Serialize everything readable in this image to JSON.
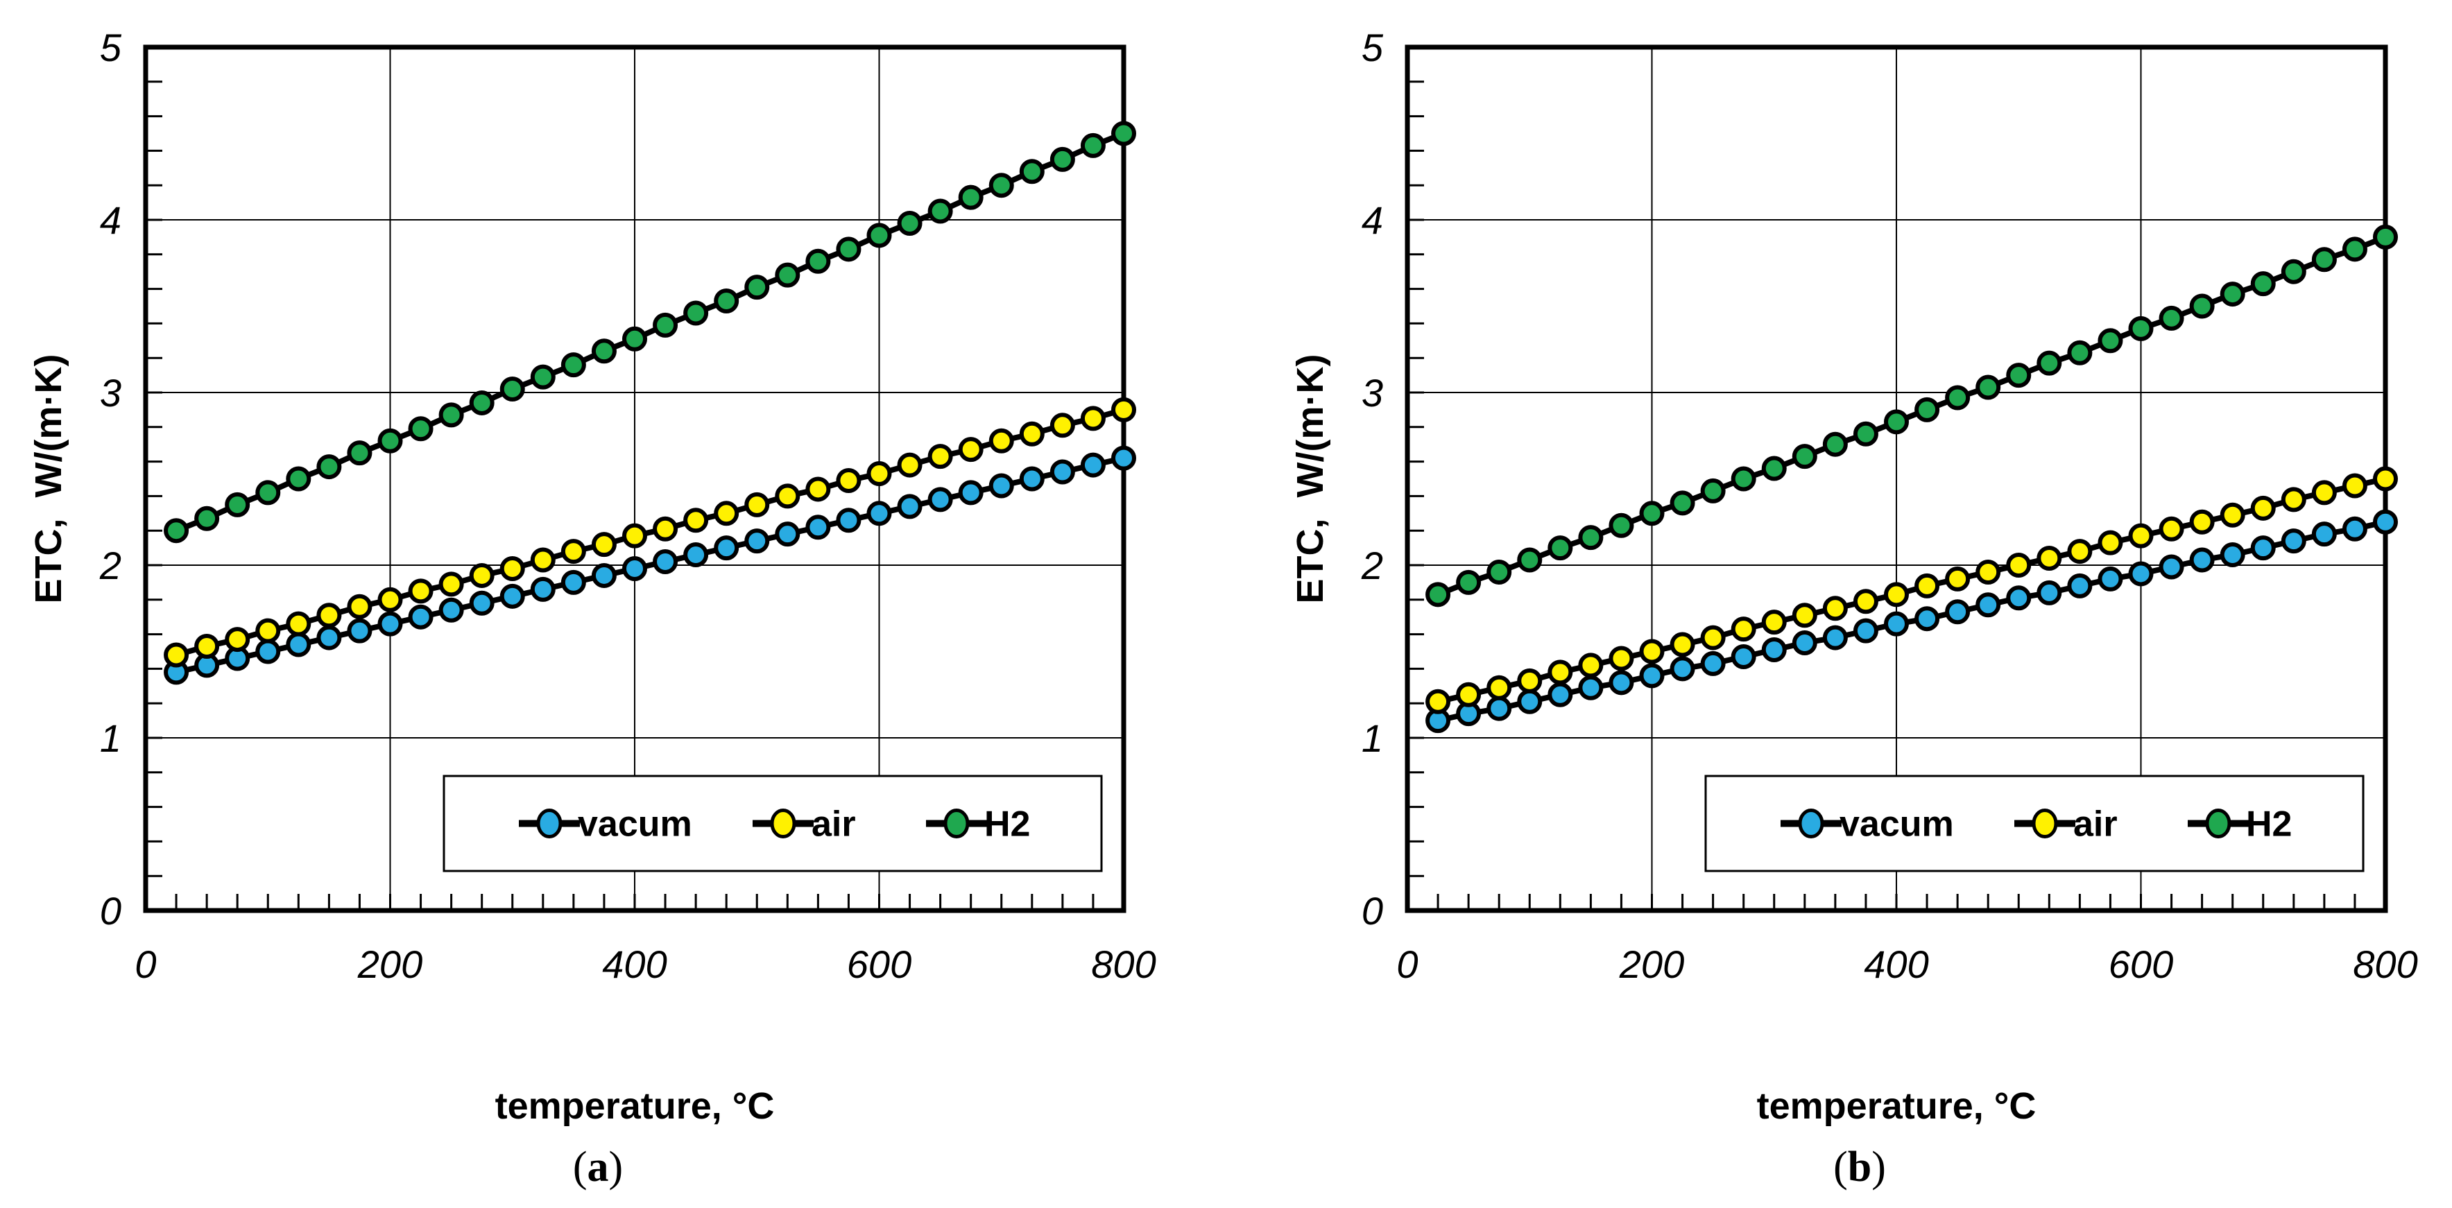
{
  "figure": {
    "background": "#FFFFFF",
    "captions": [
      {
        "label_open": "(",
        "label_letter": "a",
        "label_close": ")"
      },
      {
        "label_open": "(",
        "label_letter": "b",
        "label_close": ")"
      }
    ]
  },
  "chart_data": [
    {
      "type": "line",
      "panel": "a",
      "xlabel": "temperature, °C",
      "ylabel": "ETC,  W/(m·K)",
      "xlim": [
        0,
        800
      ],
      "ylim": [
        0,
        5
      ],
      "xticks": [
        0,
        200,
        400,
        600,
        800
      ],
      "yticks": [
        0,
        1,
        2,
        3,
        4,
        5
      ],
      "x_minor_step": 25,
      "y_minor_step": 0.2,
      "grid": true,
      "legend_position": "bottom-inside",
      "x": [
        25,
        50,
        75,
        100,
        125,
        150,
        175,
        200,
        225,
        250,
        275,
        300,
        325,
        350,
        375,
        400,
        425,
        450,
        475,
        500,
        525,
        550,
        575,
        600,
        625,
        650,
        675,
        700,
        725,
        750,
        775,
        800
      ],
      "series": [
        {
          "name": "vacum",
          "color": "#29ABE2",
          "values": [
            1.38,
            1.42,
            1.46,
            1.5,
            1.54,
            1.58,
            1.62,
            1.66,
            1.7,
            1.74,
            1.78,
            1.82,
            1.86,
            1.9,
            1.94,
            1.98,
            2.02,
            2.06,
            2.1,
            2.14,
            2.18,
            2.22,
            2.26,
            2.3,
            2.34,
            2.38,
            2.42,
            2.46,
            2.5,
            2.54,
            2.58,
            2.62
          ]
        },
        {
          "name": "air",
          "color": "#FFF100",
          "values": [
            1.48,
            1.53,
            1.57,
            1.62,
            1.66,
            1.71,
            1.76,
            1.8,
            1.85,
            1.89,
            1.94,
            1.98,
            2.03,
            2.08,
            2.12,
            2.17,
            2.21,
            2.26,
            2.3,
            2.35,
            2.4,
            2.44,
            2.49,
            2.53,
            2.58,
            2.63,
            2.67,
            2.72,
            2.76,
            2.81,
            2.85,
            2.9
          ]
        },
        {
          "name": "H2",
          "color": "#1FA84F",
          "values": [
            2.2,
            2.27,
            2.35,
            2.42,
            2.5,
            2.57,
            2.65,
            2.72,
            2.79,
            2.87,
            2.94,
            3.02,
            3.09,
            3.16,
            3.24,
            3.31,
            3.39,
            3.46,
            3.53,
            3.61,
            3.68,
            3.76,
            3.83,
            3.91,
            3.98,
            4.05,
            4.13,
            4.2,
            4.28,
            4.35,
            4.43,
            4.5
          ]
        }
      ],
      "legend": [
        "vacum",
        "air",
        "H2"
      ]
    },
    {
      "type": "line",
      "panel": "b",
      "xlabel": "temperature, °C",
      "ylabel": "ETC,  W/(m·K)",
      "xlim": [
        0,
        800
      ],
      "ylim": [
        0,
        5
      ],
      "xticks": [
        0,
        200,
        400,
        600,
        800
      ],
      "yticks": [
        0,
        1,
        2,
        3,
        4,
        5
      ],
      "x_minor_step": 25,
      "y_minor_step": 0.2,
      "grid": true,
      "legend_position": "bottom-inside",
      "x": [
        25,
        50,
        75,
        100,
        125,
        150,
        175,
        200,
        225,
        250,
        275,
        300,
        325,
        350,
        375,
        400,
        425,
        450,
        475,
        500,
        525,
        550,
        575,
        600,
        625,
        650,
        675,
        700,
        725,
        750,
        775,
        800
      ],
      "series": [
        {
          "name": "vacum",
          "color": "#29ABE2",
          "values": [
            1.1,
            1.14,
            1.17,
            1.21,
            1.25,
            1.29,
            1.32,
            1.36,
            1.4,
            1.43,
            1.47,
            1.51,
            1.55,
            1.58,
            1.62,
            1.66,
            1.69,
            1.73,
            1.77,
            1.81,
            1.84,
            1.88,
            1.92,
            1.95,
            1.99,
            2.03,
            2.06,
            2.1,
            2.14,
            2.18,
            2.21,
            2.25
          ]
        },
        {
          "name": "air",
          "color": "#FFF100",
          "values": [
            1.21,
            1.25,
            1.29,
            1.33,
            1.38,
            1.42,
            1.46,
            1.5,
            1.54,
            1.58,
            1.63,
            1.67,
            1.71,
            1.75,
            1.79,
            1.83,
            1.88,
            1.92,
            1.96,
            2.0,
            2.04,
            2.08,
            2.13,
            2.17,
            2.21,
            2.25,
            2.29,
            2.33,
            2.38,
            2.42,
            2.46,
            2.5
          ]
        },
        {
          "name": "H2",
          "color": "#1FA84F",
          "values": [
            1.83,
            1.9,
            1.96,
            2.03,
            2.1,
            2.16,
            2.23,
            2.3,
            2.36,
            2.43,
            2.5,
            2.56,
            2.63,
            2.7,
            2.76,
            2.83,
            2.9,
            2.97,
            3.03,
            3.1,
            3.17,
            3.23,
            3.3,
            3.37,
            3.43,
            3.5,
            3.57,
            3.63,
            3.7,
            3.77,
            3.83,
            3.9
          ]
        }
      ],
      "legend": [
        "vacum",
        "air",
        "H2"
      ]
    }
  ]
}
